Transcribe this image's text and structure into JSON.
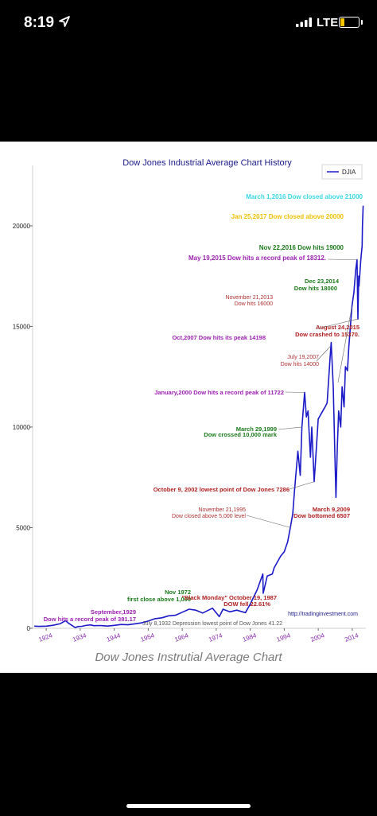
{
  "status_bar": {
    "time": "8:19",
    "network": "LTE",
    "icons": [
      "location-arrow-icon",
      "signal-bars-icon",
      "battery-low-icon"
    ]
  },
  "caption": "Dow Jones Instrutial Average Chart",
  "chart_data": {
    "type": "line",
    "title": "Dow Jones Industrial Average  Chart History",
    "legend": {
      "position": "top-right",
      "entries": [
        "DJIA"
      ]
    },
    "series": [
      {
        "name": "DJIA",
        "color": "#1a1ac8",
        "x": [
          1920.5,
          1922,
          1924,
          1926,
          1928,
          1929.7,
          1930.5,
          1931.5,
          1932.5,
          1933.5,
          1934.5,
          1935.5,
          1937,
          1938,
          1940,
          1942,
          1944,
          1946,
          1948,
          1950,
          1952,
          1954,
          1956,
          1958,
          1960,
          1962,
          1964,
          1966,
          1968,
          1970,
          1972.9,
          1974.9,
          1976,
          1978,
          1980,
          1982.6,
          1984,
          1986,
          1987.7,
          1987.8,
          1989,
          1990.5,
          1991,
          1992,
          1993,
          1994,
          1995,
          1995.9,
          1996.5,
          1997,
          1998,
          1998.7,
          1999.2,
          2000,
          2000.5,
          2001,
          2001.7,
          2002.1,
          2002.8,
          2003.2,
          2004,
          2005,
          2006,
          2006.6,
          2007.5,
          2007.8,
          2008.4,
          2008.9,
          2009.2,
          2009.6,
          2010,
          2010.6,
          2011,
          2011.6,
          2012,
          2012.6,
          2013,
          2013.9,
          2014.5,
          2015,
          2015.4,
          2015.65,
          2015.9,
          2016,
          2016.5,
          2016.9,
          2017,
          2017.2
        ],
        "values": [
          105,
          95,
          105,
          150,
          220,
          381,
          260,
          150,
          41,
          90,
          100,
          140,
          170,
          130,
          140,
          110,
          145,
          190,
          175,
          220,
          270,
          360,
          480,
          520,
          620,
          650,
          800,
          950,
          900,
          760,
          1000,
          580,
          950,
          820,
          900,
          777,
          1200,
          1900,
          2700,
          1740,
          2600,
          2700,
          3000,
          3300,
          3600,
          3800,
          4300,
          5100,
          5700,
          6800,
          8800,
          7600,
          10000,
          11722,
          10500,
          10800,
          8500,
          10000,
          7286,
          8300,
          10400,
          10700,
          11000,
          11200,
          13500,
          14198,
          12000,
          8500,
          6507,
          9000,
          10800,
          10000,
          12000,
          11000,
          13000,
          12800,
          14000,
          16000,
          16700,
          17800,
          18312,
          15370,
          17500,
          17000,
          18300,
          19000,
          20000,
          21000
        ]
      }
    ],
    "xlim": [
      1920,
      2018
    ],
    "ylim": [
      0,
      23000
    ],
    "x_ticks": [
      "1924",
      "1934",
      "1944",
      "1954",
      "1964",
      "1974",
      "1984",
      "1994",
      "2004",
      "2014"
    ],
    "y_ticks": [
      "0",
      "5000",
      "10000",
      "15000",
      "20000"
    ],
    "annotations": [
      {
        "text": "March 1,2016 Dow closed above 21000",
        "color": "#3ad7e8",
        "x": 2017.2,
        "y": 21000
      },
      {
        "text": "Jan 25,2017 Dow closed above 20000",
        "color": "#f0c000",
        "x": 2017.1,
        "y": 20000
      },
      {
        "text": "Nov 22,2016 Dow hits 19000",
        "color": "#1a7a1a",
        "x": 2016.9,
        "y": 19000
      },
      {
        "text": "May 19,2015  Dow  hits a record peak of 18312.",
        "color": "#9b1fb0",
        "x": 2015.4,
        "y": 18312
      },
      {
        "text": "Dec 23,2014",
        "color": "#1a7a1a",
        "x": 2014.9,
        "y": 18000
      },
      {
        "text": "Dow hits 18000",
        "color": "#1a7a1a",
        "x": 2014.9,
        "y": 18000
      },
      {
        "text": "November 21,2013",
        "color": "#b03030",
        "x": 2013.9,
        "y": 16000
      },
      {
        "text": "Dow hits 16000",
        "color": "#b03030",
        "x": 2013.9,
        "y": 16000
      },
      {
        "text": "August 24,2015",
        "color": "#b02020",
        "x": 2015.65,
        "y": 15370
      },
      {
        "text": "Dow  crashed to 15370.",
        "color": "#b02020",
        "x": 2015.65,
        "y": 15370
      },
      {
        "text": "Oct,2007 Dow hits its peak 14198",
        "color": "#9b1fb0",
        "x": 2007.8,
        "y": 14198
      },
      {
        "text": "July 19,2007",
        "color": "#b03030",
        "x": 2007.5,
        "y": 14000
      },
      {
        "text": "Dow hits 14000",
        "color": "#b03030",
        "x": 2007.5,
        "y": 14000
      },
      {
        "text": "January,2000 Dow  hits a record peak of 11722",
        "color": "#9b1fb0",
        "x": 2000,
        "y": 11722
      },
      {
        "text": "March 29,1999",
        "color": "#1a7a1a",
        "x": 1999.2,
        "y": 10000
      },
      {
        "text": "Dow crossed 10,000 mark",
        "color": "#1a7a1a",
        "x": 1999.2,
        "y": 10000
      },
      {
        "text": "October 9, 2002 lowest point of Dow Jones 7286",
        "color": "#b02020",
        "x": 2002.8,
        "y": 7286
      },
      {
        "text": "March 9,2009",
        "color": "#b02020",
        "x": 2009.2,
        "y": 6507
      },
      {
        "text": "Dow bottomed 6507",
        "color": "#b02020",
        "x": 2009.2,
        "y": 6507
      },
      {
        "text": "November 21,1995",
        "color": "#b03030",
        "x": 1995.9,
        "y": 5000
      },
      {
        "text": "Dow closed above 5,000 level",
        "color": "#b03030",
        "x": 1995.9,
        "y": 5000
      },
      {
        "text": "Nov 1972",
        "color": "#1a7a1a",
        "x": 1972.9,
        "y": 1000
      },
      {
        "text": "first close above 1,000",
        "color": "#1a7a1a",
        "x": 1972.9,
        "y": 1000
      },
      {
        "text": "\"Black Monday\" October 19, 1987",
        "color": "#b02020",
        "x": 1987.8,
        "y": 1740
      },
      {
        "text": "DOW fell 22.61%",
        "color": "#b02020",
        "x": 1987.8,
        "y": 1740
      },
      {
        "text": "September,1929",
        "color": "#9b1fb0",
        "x": 1929.7,
        "y": 381
      },
      {
        "text": "Dow  hits a record peak of 381.17",
        "color": "#9b1fb0",
        "x": 1929.7,
        "y": 381
      },
      {
        "text": "July 8,1932 Depression lowest point of Dow Jones  41.22",
        "color": "#555555",
        "x": 1932.5,
        "y": 41
      }
    ],
    "watermark": "http://tradinginvestment.com"
  }
}
